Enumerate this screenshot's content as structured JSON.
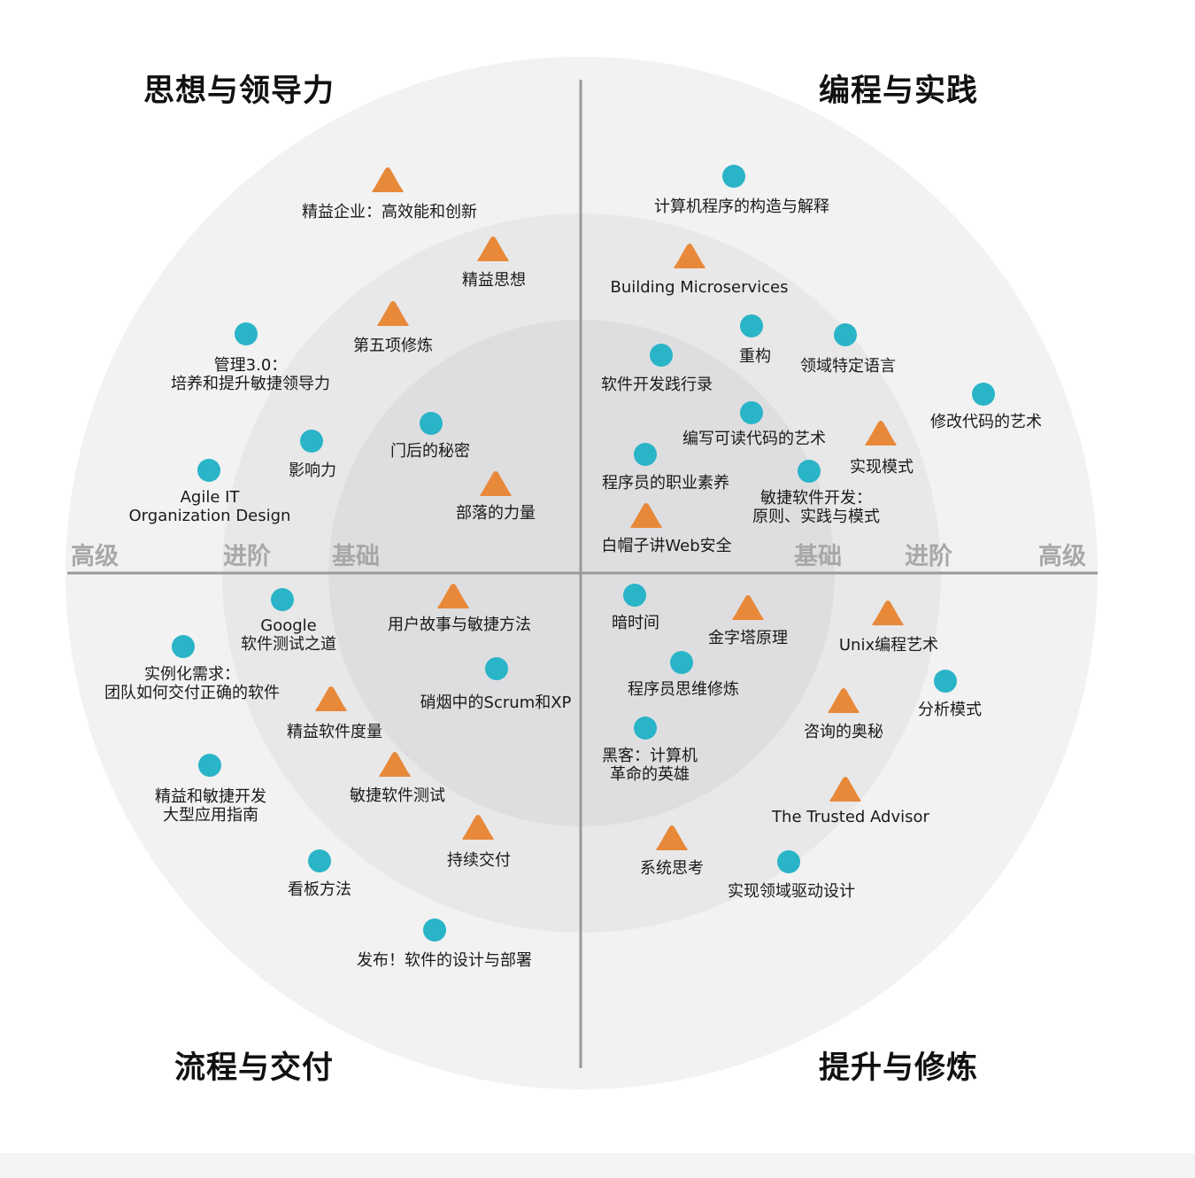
{
  "quadrants": {
    "top_left": "思想与领导力",
    "top_right": "编程与实践",
    "bottom_left": "流程与交付",
    "bottom_right": "提升与修炼"
  },
  "rings": {
    "inner": "基础",
    "middle": "进阶",
    "outer": "高级"
  },
  "colors": {
    "circle_marker": "#2ab4c8",
    "triangle_marker": "#e8893a",
    "outer_ring": "#f2f2f2",
    "middle_ring": "#e8e8e9",
    "inner_ring": "#dedee0",
    "divider": "#9a9a9a",
    "ring_label": "#a8a8a8"
  },
  "items": [
    {
      "name": "item-jingyi-qiye",
      "shape": "triangle",
      "lines": [
        "精益企业：高效能和创新"
      ]
    },
    {
      "name": "item-jingyi-sixiang",
      "shape": "triangle",
      "lines": [
        "精益思想"
      ]
    },
    {
      "name": "item-diwu-xiulian",
      "shape": "triangle",
      "lines": [
        "第五项修炼"
      ]
    },
    {
      "name": "item-guanli-3",
      "shape": "circle",
      "lines": [
        "管理3.0：",
        "培养和提升敏捷领导力"
      ]
    },
    {
      "name": "item-menhou-mimi",
      "shape": "circle",
      "lines": [
        "门后的秘密"
      ]
    },
    {
      "name": "item-yingxiangli",
      "shape": "circle",
      "lines": [
        "影响力"
      ]
    },
    {
      "name": "item-agile-it",
      "shape": "circle",
      "lines": [
        "Agile IT",
        "Organization Design"
      ]
    },
    {
      "name": "item-buluo-liliang",
      "shape": "triangle",
      "lines": [
        "部落的力量"
      ]
    },
    {
      "name": "item-sicp",
      "shape": "circle",
      "lines": [
        "计算机程序的构造与解释"
      ]
    },
    {
      "name": "item-building-microservices",
      "shape": "triangle",
      "lines": [
        "Building Microservices"
      ]
    },
    {
      "name": "item-chonggou",
      "shape": "circle",
      "lines": [
        "重构"
      ]
    },
    {
      "name": "item-lingyu-yuyan",
      "shape": "circle",
      "lines": [
        "领域特定语言"
      ]
    },
    {
      "name": "item-ruanjian-kaifa-jianxing",
      "shape": "circle",
      "lines": [
        "软件开发践行录"
      ]
    },
    {
      "name": "item-xiugai-daima",
      "shape": "circle",
      "lines": [
        "修改代码的艺术"
      ]
    },
    {
      "name": "item-kedu-daima",
      "shape": "circle",
      "lines": [
        "编写可读代码的艺术"
      ]
    },
    {
      "name": "item-shixian-moshi",
      "shape": "triangle",
      "lines": [
        "实现模式"
      ]
    },
    {
      "name": "item-zhiye-suyang",
      "shape": "circle",
      "lines": [
        "程序员的职业素养"
      ]
    },
    {
      "name": "item-minjie-kaifa",
      "shape": "circle",
      "lines": [
        "敏捷软件开发：",
        "原则、实践与模式"
      ]
    },
    {
      "name": "item-web-anquan",
      "shape": "triangle",
      "lines": [
        "白帽子讲Web安全"
      ]
    },
    {
      "name": "item-google-ceshi",
      "shape": "circle",
      "lines": [
        "Google",
        "软件测试之道"
      ]
    },
    {
      "name": "item-yonghu-gushi",
      "shape": "triangle",
      "lines": [
        "用户故事与敏捷方法"
      ]
    },
    {
      "name": "item-shilihua-xuqiu",
      "shape": "circle",
      "lines": [
        "实例化需求：",
        "团队如何交付正确的软件"
      ]
    },
    {
      "name": "item-scrum-xp",
      "shape": "circle",
      "lines": [
        "硝烟中的Scrum和XP"
      ]
    },
    {
      "name": "item-jingyi-duliang",
      "shape": "triangle",
      "lines": [
        "精益软件度量"
      ]
    },
    {
      "name": "item-jingyi-minjie",
      "shape": "circle",
      "lines": [
        "精益和敏捷开发",
        "大型应用指南"
      ]
    },
    {
      "name": "item-minjie-ceshi",
      "shape": "triangle",
      "lines": [
        "敏捷软件测试"
      ]
    },
    {
      "name": "item-chixu-jiaofu",
      "shape": "triangle",
      "lines": [
        "持续交付"
      ]
    },
    {
      "name": "item-kanban",
      "shape": "circle",
      "lines": [
        "看板方法"
      ]
    },
    {
      "name": "item-fabu",
      "shape": "circle",
      "lines": [
        "发布！软件的设计与部署"
      ]
    },
    {
      "name": "item-an-shijian",
      "shape": "circle",
      "lines": [
        "暗时间"
      ]
    },
    {
      "name": "item-jinzita",
      "shape": "triangle",
      "lines": [
        "金字塔原理"
      ]
    },
    {
      "name": "item-unix",
      "shape": "triangle",
      "lines": [
        "Unix编程艺术"
      ]
    },
    {
      "name": "item-siwei-xiulian",
      "shape": "circle",
      "lines": [
        "程序员思维修炼"
      ]
    },
    {
      "name": "item-fenxi-moshi",
      "shape": "circle",
      "lines": [
        "分析模式"
      ]
    },
    {
      "name": "item-zixun-aomi",
      "shape": "triangle",
      "lines": [
        "咨询的奥秘"
      ]
    },
    {
      "name": "item-heike",
      "shape": "circle",
      "lines": [
        "黑客：计算机",
        "革命的英雄"
      ]
    },
    {
      "name": "item-trusted-advisor",
      "shape": "triangle",
      "lines": [
        "The Trusted Advisor"
      ]
    },
    {
      "name": "item-xitong-sikao",
      "shape": "triangle",
      "lines": [
        "系统思考"
      ]
    },
    {
      "name": "item-ddd",
      "shape": "circle",
      "lines": [
        "实现领域驱动设计"
      ]
    }
  ]
}
